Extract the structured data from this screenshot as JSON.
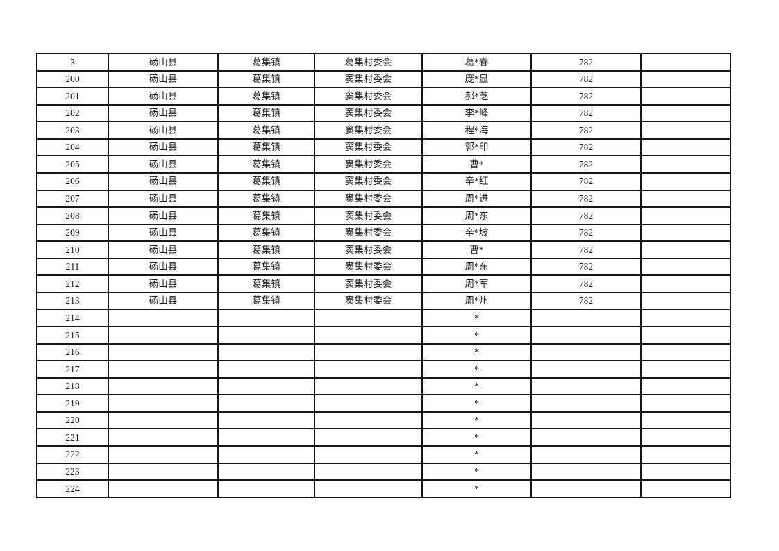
{
  "page": {
    "background": "#ffffff",
    "text_color": "#1c1c1c",
    "border_color": "#161616"
  },
  "table": {
    "column_semantics": [
      "row-number",
      "county",
      "town",
      "village-committee",
      "masked-name",
      "amount",
      "blank"
    ],
    "rows": [
      [
        "3",
        "砀山县",
        "葛集镇",
        "葛集村委会",
        "葛*春",
        "782",
        ""
      ],
      [
        "200",
        "砀山县",
        "葛集镇",
        "窦集村委会",
        "庞*显",
        "782",
        ""
      ],
      [
        "201",
        "砀山县",
        "葛集镇",
        "窦集村委会",
        "郝*芝",
        "782",
        ""
      ],
      [
        "202",
        "砀山县",
        "葛集镇",
        "窦集村委会",
        "李*峰",
        "782",
        ""
      ],
      [
        "203",
        "砀山县",
        "葛集镇",
        "窦集村委会",
        "程*海",
        "782",
        ""
      ],
      [
        "204",
        "砀山县",
        "葛集镇",
        "窦集村委会",
        "郭*印",
        "782",
        ""
      ],
      [
        "205",
        "砀山县",
        "葛集镇",
        "窦集村委会",
        "曹*",
        "782",
        ""
      ],
      [
        "206",
        "砀山县",
        "葛集镇",
        "窦集村委会",
        "辛*红",
        "782",
        ""
      ],
      [
        "207",
        "砀山县",
        "葛集镇",
        "窦集村委会",
        "周*进",
        "782",
        ""
      ],
      [
        "208",
        "砀山县",
        "葛集镇",
        "窦集村委会",
        "周*东",
        "782",
        ""
      ],
      [
        "209",
        "砀山县",
        "葛集镇",
        "窦集村委会",
        "辛*坡",
        "782",
        ""
      ],
      [
        "210",
        "砀山县",
        "葛集镇",
        "窦集村委会",
        "曹*",
        "782",
        ""
      ],
      [
        "211",
        "砀山县",
        "葛集镇",
        "窦集村委会",
        "周*东",
        "782",
        ""
      ],
      [
        "212",
        "砀山县",
        "葛集镇",
        "窦集村委会",
        "周*军",
        "782",
        ""
      ],
      [
        "213",
        "砀山县",
        "葛集镇",
        "窦集村委会",
        "周*州",
        "782",
        ""
      ],
      [
        "214",
        "",
        "",
        "",
        "*",
        "",
        ""
      ],
      [
        "215",
        "",
        "",
        "",
        "*",
        "",
        ""
      ],
      [
        "216",
        "",
        "",
        "",
        "*",
        "",
        ""
      ],
      [
        "217",
        "",
        "",
        "",
        "*",
        "",
        ""
      ],
      [
        "218",
        "",
        "",
        "",
        "*",
        "",
        ""
      ],
      [
        "219",
        "",
        "",
        "",
        "*",
        "",
        ""
      ],
      [
        "220",
        "",
        "",
        "",
        "*",
        "",
        ""
      ],
      [
        "221",
        "",
        "",
        "",
        "*",
        "",
        ""
      ],
      [
        "222",
        "",
        "",
        "",
        "*",
        "",
        ""
      ],
      [
        "223",
        "",
        "",
        "",
        "*",
        "",
        ""
      ],
      [
        "224",
        "",
        "",
        "",
        "*",
        "",
        ""
      ]
    ]
  }
}
